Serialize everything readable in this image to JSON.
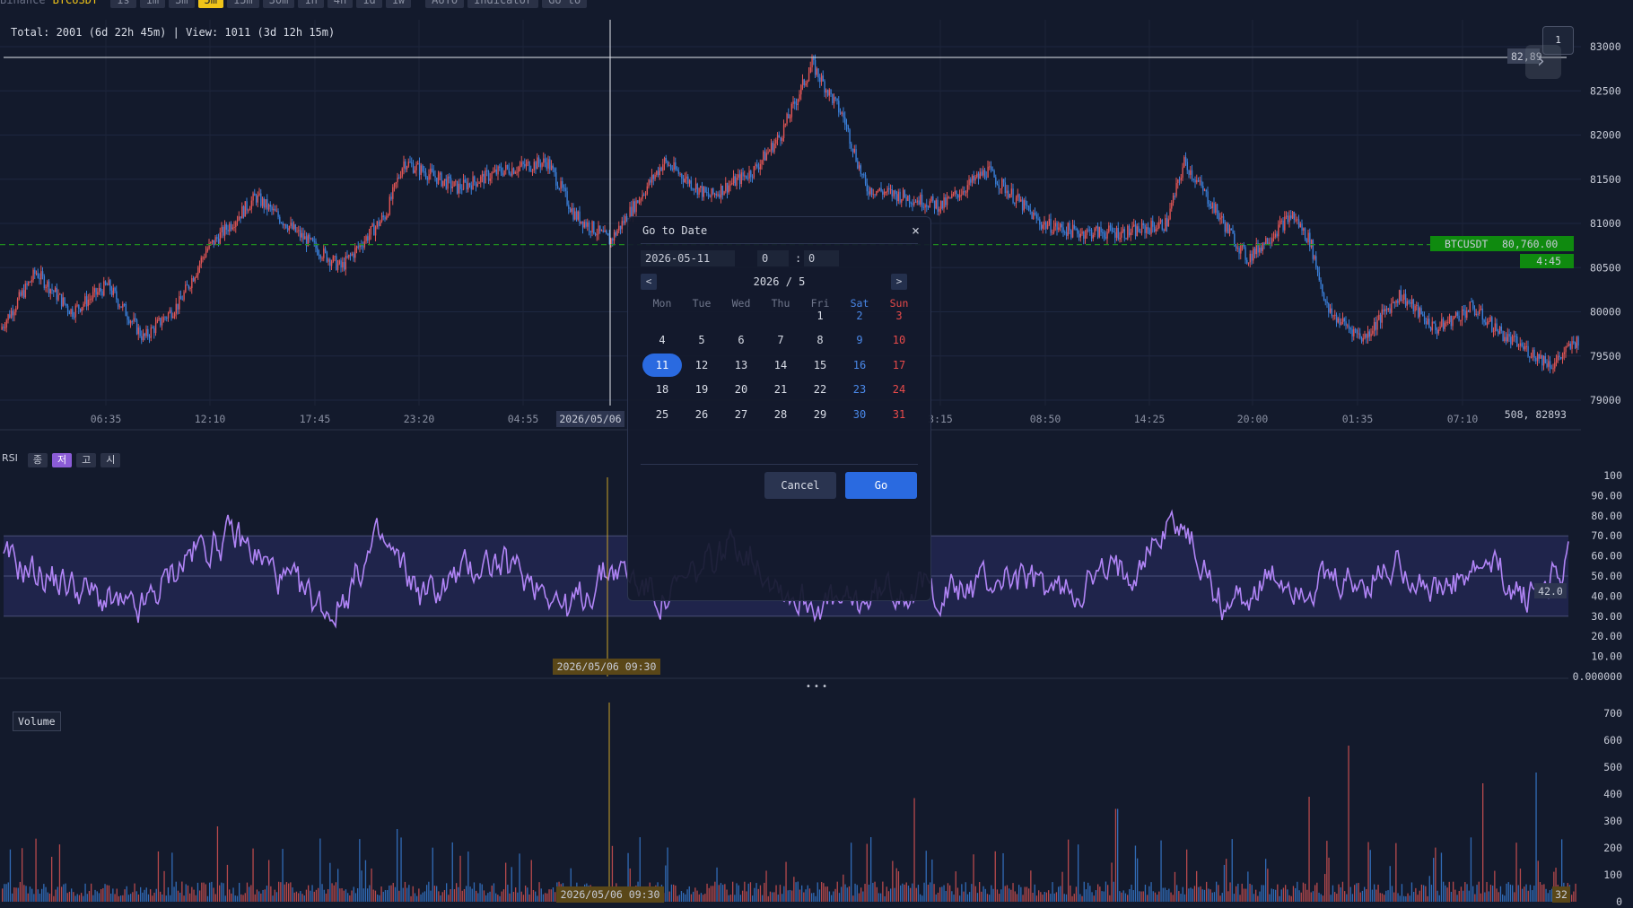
{
  "toolbar": {
    "exchange": "Binance",
    "symbol": "BTCUSDT",
    "intervals": [
      "1s",
      "1m",
      "3m",
      "5m",
      "15m",
      "30m",
      "1h",
      "4h",
      "1d",
      "1w"
    ],
    "active_interval": "5m",
    "auto_label": "AUTO",
    "indicator_label": "Indicator",
    "goto_label": "Go to"
  },
  "main": {
    "info": "Total: 2001 (6d 22h 45m) | View: 1011 (3d 12h 15m)",
    "price_axis": [
      "83000",
      "82500",
      "82000",
      "81500",
      "81000",
      "80500",
      "80000",
      "79500",
      "79000"
    ],
    "time_axis": [
      "06:35",
      "12:10",
      "17:45",
      "23:20",
      "04:55",
      "3:15",
      "08:50",
      "14:25",
      "20:00",
      "01:35",
      "07:10"
    ],
    "crosshair_date": "2026/05/06",
    "crosshair_price": "82,89",
    "ticker_label": "BTCUSDT",
    "ticker_price": "80,760.00",
    "countdown": "4:45",
    "cursor_readout": "508,  82893",
    "page_badge": "1",
    "colors": {
      "up": "#e05555",
      "down": "#3a7fd9",
      "last_price": "#1f8a1f",
      "bg": "#131a2c"
    }
  },
  "rsi": {
    "label": "RSI",
    "buttons": [
      "종",
      "저",
      "고",
      "시"
    ],
    "active_button": "저",
    "axis": [
      "100",
      "90.00",
      "80.00",
      "70.00",
      "60.00",
      "50.00",
      "40.00",
      "30.00",
      "20.00",
      "10.00",
      "0.000000"
    ],
    "current_value": "42.0",
    "date_label": "2026/05/06 09:30",
    "line_color": "#b084f5"
  },
  "divider_handle": "• • •",
  "volume": {
    "label": "Volume",
    "axis": [
      "700",
      "600",
      "500",
      "400",
      "300",
      "200",
      "100",
      "0"
    ],
    "date_label": "2026/05/06 09:30",
    "current_value": "32"
  },
  "dialog": {
    "title": "Go to Date",
    "close_icon": "×",
    "date_value": "2026-05-11",
    "hour_value": "0",
    "minute_value": "0",
    "colon": ":",
    "prev_label": "<",
    "next_label": ">",
    "month_label": "2026 / 5",
    "weekdays": [
      "Mon",
      "Tue",
      "Wed",
      "Thu",
      "Fri",
      "Sat",
      "Sun"
    ],
    "weeks": [
      [
        "",
        "",
        "",
        "",
        "1",
        "2",
        "3"
      ],
      [
        "4",
        "5",
        "6",
        "7",
        "8",
        "9",
        "10"
      ],
      [
        "11",
        "12",
        "13",
        "14",
        "15",
        "16",
        "17"
      ],
      [
        "18",
        "19",
        "20",
        "21",
        "22",
        "23",
        "24"
      ],
      [
        "25",
        "26",
        "27",
        "28",
        "29",
        "30",
        "31"
      ]
    ],
    "selected_day": "11",
    "cancel_label": "Cancel",
    "go_label": "Go"
  }
}
